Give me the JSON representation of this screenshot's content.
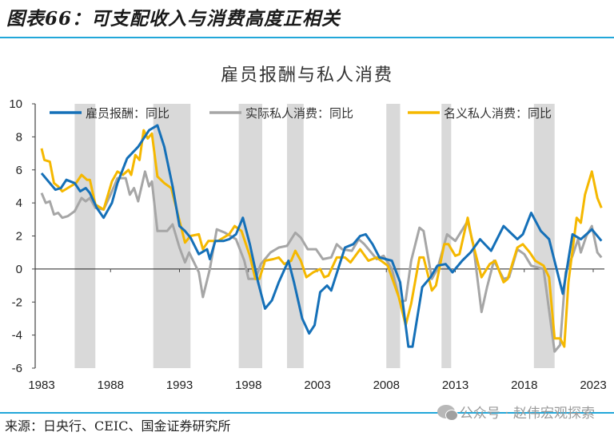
{
  "figure_title": "图表66：可支配收入与消费高度正相关",
  "source": "来源：日央行、CEIC、国金证券研究所",
  "watermark": "公众号 · 赵伟宏观探索",
  "colors": {
    "comp": "#1570b8",
    "real": "#a6a6a6",
    "nominal": "#f5b800",
    "shade": "#d9d9d9",
    "rule": "#22a7d9"
  },
  "chart_data": {
    "type": "line",
    "title": "雇员报酬与私人消费",
    "xlabel": "",
    "ylabel": "",
    "xlim": [
      1983,
      2023.8
    ],
    "ylim": [
      -6,
      10
    ],
    "y_ticks": [
      "-6",
      "-4",
      "-2",
      "0",
      "2",
      "4",
      "6",
      "8",
      "10"
    ],
    "x_ticks": [
      "1983",
      "1988",
      "1993",
      "1998",
      "2003",
      "2008",
      "2013",
      "2018",
      "2023"
    ],
    "legend_position": "top",
    "grid": false,
    "recessions": [
      [
        1985.4,
        1986.9
      ],
      [
        1991.1,
        1993.8
      ],
      [
        1997.3,
        1999.0
      ],
      [
        2000.8,
        2002.0
      ],
      [
        2008.0,
        2009.0
      ],
      [
        2012.0,
        2012.7
      ],
      [
        2018.7,
        2020.2
      ]
    ],
    "series": [
      {
        "name": "雇员报酬：同比",
        "key": "comp",
        "points": [
          [
            1983,
            5.8
          ],
          [
            1983.5,
            5.3
          ],
          [
            1984,
            4.8
          ],
          [
            1984.4,
            4.9
          ],
          [
            1984.8,
            5.4
          ],
          [
            1985.4,
            5.2
          ],
          [
            1985.8,
            4.7
          ],
          [
            1986.2,
            4.9
          ],
          [
            1986.5,
            4.6
          ],
          [
            1987,
            3.7
          ],
          [
            1987.5,
            3.1
          ],
          [
            1988.1,
            4.0
          ],
          [
            1988.5,
            5.2
          ],
          [
            1989.2,
            6.7
          ],
          [
            1990,
            7.4
          ],
          [
            1990.8,
            8.4
          ],
          [
            1991.4,
            8.7
          ],
          [
            1991.9,
            7.4
          ],
          [
            1992.5,
            5.0
          ],
          [
            1993,
            2.6
          ],
          [
            1993.4,
            2.3
          ],
          [
            1993.8,
            1.9
          ],
          [
            1994.4,
            0.9
          ],
          [
            1995,
            1.2
          ],
          [
            1995.2,
            0.6
          ],
          [
            1995.6,
            1.7
          ],
          [
            1996.2,
            1.7
          ],
          [
            1996.6,
            1.8
          ],
          [
            1997.1,
            2.1
          ],
          [
            1997.6,
            3.1
          ],
          [
            1998.1,
            1.5
          ],
          [
            1998.7,
            -0.8
          ],
          [
            1999.2,
            -2.4
          ],
          [
            1999.7,
            -1.9
          ],
          [
            2000.2,
            -0.8
          ],
          [
            2000.9,
            0.5
          ],
          [
            2001.3,
            -0.8
          ],
          [
            2001.9,
            -3.0
          ],
          [
            2002.4,
            -3.9
          ],
          [
            2002.8,
            -3.4
          ],
          [
            2003.2,
            -1.4
          ],
          [
            2003.7,
            -1.0
          ],
          [
            2004,
            -1.3
          ],
          [
            2004.5,
            0
          ],
          [
            2005,
            1.3
          ],
          [
            2005.6,
            1.5
          ],
          [
            2006.1,
            2.0
          ],
          [
            2006.5,
            2.1
          ],
          [
            2007,
            1.5
          ],
          [
            2007.5,
            0.7
          ],
          [
            2008.4,
            0.5
          ],
          [
            2009,
            -0.8
          ],
          [
            2009.6,
            -4.7
          ],
          [
            2009.9,
            -4.7
          ],
          [
            2010.6,
            -1.1
          ],
          [
            2011.2,
            -0.5
          ],
          [
            2011.7,
            0.2
          ],
          [
            2012.3,
            0.3
          ],
          [
            2012.8,
            -0.2
          ],
          [
            2013.5,
            0.5
          ],
          [
            2014.1,
            1.0
          ],
          [
            2014.8,
            1.8
          ],
          [
            2015.6,
            1.1
          ],
          [
            2016.5,
            2.6
          ],
          [
            2017.5,
            1.8
          ],
          [
            2017.9,
            2.1
          ],
          [
            2018.5,
            3.4
          ],
          [
            2019.2,
            2.3
          ],
          [
            2019.8,
            1.8
          ],
          [
            2020.8,
            -1.5
          ],
          [
            2021.5,
            2.1
          ],
          [
            2022.1,
            1.8
          ],
          [
            2022.9,
            2.4
          ],
          [
            2023.6,
            1.7
          ]
        ]
      },
      {
        "name": "实际私人消费：同比",
        "key": "real",
        "points": [
          [
            1983,
            4.6
          ],
          [
            1983.3,
            4.0
          ],
          [
            1983.6,
            4.1
          ],
          [
            1983.9,
            3.3
          ],
          [
            1984.2,
            3.4
          ],
          [
            1984.5,
            3.1
          ],
          [
            1984.9,
            3.2
          ],
          [
            1985.4,
            3.5
          ],
          [
            1985.9,
            4.3
          ],
          [
            1986.2,
            4.1
          ],
          [
            1986.5,
            4.3
          ],
          [
            1986.9,
            3.7
          ],
          [
            1987.5,
            3.6
          ],
          [
            1988,
            4.5
          ],
          [
            1988.5,
            5.5
          ],
          [
            1989.1,
            5.5
          ],
          [
            1989.4,
            4.5
          ],
          [
            1989.7,
            4.9
          ],
          [
            1990,
            4.1
          ],
          [
            1990.5,
            5.9
          ],
          [
            1990.8,
            5.0
          ],
          [
            1991,
            5.3
          ],
          [
            1991.4,
            2.3
          ],
          [
            1992.1,
            2.3
          ],
          [
            1992.5,
            2.7
          ],
          [
            1993,
            1.3
          ],
          [
            1993.4,
            0.4
          ],
          [
            1993.7,
            1.0
          ],
          [
            1994.4,
            -0.2
          ],
          [
            1994.7,
            -1.7
          ],
          [
            1995.2,
            0
          ],
          [
            1995.7,
            2.4
          ],
          [
            1996.3,
            2.2
          ],
          [
            1997.1,
            1.8
          ],
          [
            1997.7,
            0.5
          ],
          [
            1998,
            -0.6
          ],
          [
            1998.5,
            -0.6
          ],
          [
            1998.9,
            0.3
          ],
          [
            1999.6,
            1.0
          ],
          [
            2000.2,
            1.3
          ],
          [
            2000.8,
            1.4
          ],
          [
            2001.4,
            2.2
          ],
          [
            2001.8,
            1.9
          ],
          [
            2002.3,
            1.2
          ],
          [
            2002.9,
            1.2
          ],
          [
            2003.4,
            0.6
          ],
          [
            2004,
            0.7
          ],
          [
            2004.4,
            1.5
          ],
          [
            2004.8,
            1.2
          ],
          [
            2005.5,
            1.1
          ],
          [
            2006,
            1.8
          ],
          [
            2006.4,
            1.5
          ],
          [
            2007.3,
            0.6
          ],
          [
            2007.8,
            0.8
          ],
          [
            2008.4,
            0
          ],
          [
            2009,
            -2.0
          ],
          [
            2009.4,
            -1.9
          ],
          [
            2009.8,
            0.5
          ],
          [
            2010.4,
            2.5
          ],
          [
            2010.7,
            2.3
          ],
          [
            2011.3,
            -0.6
          ],
          [
            2011.7,
            0
          ],
          [
            2012.4,
            2.1
          ],
          [
            2013,
            1.7
          ],
          [
            2013.9,
            2.9
          ],
          [
            2014.3,
            1.5
          ],
          [
            2014.9,
            -2.6
          ],
          [
            2015.3,
            -1.1
          ],
          [
            2015.8,
            0.5
          ],
          [
            2016.5,
            -0.6
          ],
          [
            2016.9,
            -0.5
          ],
          [
            2017.5,
            1.2
          ],
          [
            2018,
            0.9
          ],
          [
            2018.5,
            0.2
          ],
          [
            2019.4,
            0
          ],
          [
            2020.2,
            -5.0
          ],
          [
            2020.6,
            -4.6
          ],
          [
            2021,
            -0.2
          ],
          [
            2021.5,
            0.8
          ],
          [
            2021.9,
            1.8
          ],
          [
            2022.1,
            1.0
          ],
          [
            2022.5,
            2.0
          ],
          [
            2022.9,
            2.6
          ],
          [
            2023.3,
            1.0
          ],
          [
            2023.6,
            0.7
          ]
        ]
      },
      {
        "name": "名义私人消费：同比",
        "key": "nominal",
        "points": [
          [
            1983,
            7.3
          ],
          [
            1983.2,
            6.6
          ],
          [
            1983.6,
            6.5
          ],
          [
            1983.9,
            5.2
          ],
          [
            1984.2,
            5.0
          ],
          [
            1984.5,
            4.7
          ],
          [
            1985.1,
            5.0
          ],
          [
            1985.5,
            5.2
          ],
          [
            1985.9,
            5.7
          ],
          [
            1986.3,
            5.4
          ],
          [
            1986.5,
            5.4
          ],
          [
            1986.9,
            3.9
          ],
          [
            1987.5,
            3.6
          ],
          [
            1988.1,
            5.3
          ],
          [
            1988.5,
            5.9
          ],
          [
            1988.9,
            5.7
          ],
          [
            1989.3,
            6.0
          ],
          [
            1989.5,
            5.7
          ],
          [
            1989.8,
            6.9
          ],
          [
            1990.1,
            6.6
          ],
          [
            1990.4,
            8.4
          ],
          [
            1990.7,
            7.9
          ],
          [
            1991,
            8.2
          ],
          [
            1991.4,
            5.6
          ],
          [
            1991.9,
            5.2
          ],
          [
            1992.4,
            4.9
          ],
          [
            1993.1,
            2.6
          ],
          [
            1993.4,
            1.6
          ],
          [
            1993.8,
            2.0
          ],
          [
            1994.4,
            2.1
          ],
          [
            1994.7,
            1.2
          ],
          [
            1995.1,
            1.7
          ],
          [
            1995.8,
            1.7
          ],
          [
            1996.6,
            2.1
          ],
          [
            1997,
            2.6
          ],
          [
            1997.5,
            2.3
          ],
          [
            1998.1,
            0.8
          ],
          [
            1998.5,
            -0.6
          ],
          [
            1998.8,
            -0.6
          ],
          [
            1999.2,
            0.5
          ],
          [
            1999.8,
            0.6
          ],
          [
            2000.2,
            0.7
          ],
          [
            2000.6,
            0.3
          ],
          [
            2001.1,
            0.5
          ],
          [
            2001.4,
            1.1
          ],
          [
            2001.8,
            0.5
          ],
          [
            2002.2,
            -0.5
          ],
          [
            2002.7,
            -0.2
          ],
          [
            2003.2,
            0
          ],
          [
            2003.5,
            -0.5
          ],
          [
            2003.8,
            -0.4
          ],
          [
            2004.4,
            0.7
          ],
          [
            2005,
            0.7
          ],
          [
            2005.4,
            0.4
          ],
          [
            2006.1,
            1.2
          ],
          [
            2006.7,
            0.5
          ],
          [
            2007.3,
            0.7
          ],
          [
            2008.1,
            0.2
          ],
          [
            2008.9,
            -1.7
          ],
          [
            2009.4,
            -3.4
          ],
          [
            2009.8,
            -2.1
          ],
          [
            2010.4,
            0.7
          ],
          [
            2010.7,
            0.7
          ],
          [
            2011.3,
            -1.3
          ],
          [
            2011.6,
            -1.0
          ],
          [
            2012.2,
            1.5
          ],
          [
            2012.5,
            1.5
          ],
          [
            2013,
            0.8
          ],
          [
            2013.3,
            0.9
          ],
          [
            2013.9,
            3.1
          ],
          [
            2014.2,
            1.8
          ],
          [
            2014.9,
            -0.5
          ],
          [
            2015.5,
            0.3
          ],
          [
            2015.9,
            0.5
          ],
          [
            2016.5,
            -0.8
          ],
          [
            2016.8,
            -0.6
          ],
          [
            2017.5,
            1.3
          ],
          [
            2017.9,
            1.5
          ],
          [
            2018.4,
            1.0
          ],
          [
            2018.8,
            0.5
          ],
          [
            2019.4,
            0.2
          ],
          [
            2019.8,
            -0.5
          ],
          [
            2020.2,
            -4.2
          ],
          [
            2020.6,
            -4.2
          ],
          [
            2020.9,
            -4.7
          ],
          [
            2021.2,
            -0.8
          ],
          [
            2021.8,
            3.1
          ],
          [
            2022.1,
            2.8
          ],
          [
            2022.4,
            4.5
          ],
          [
            2022.9,
            5.9
          ],
          [
            2023.3,
            4.3
          ],
          [
            2023.6,
            3.7
          ]
        ]
      }
    ]
  }
}
